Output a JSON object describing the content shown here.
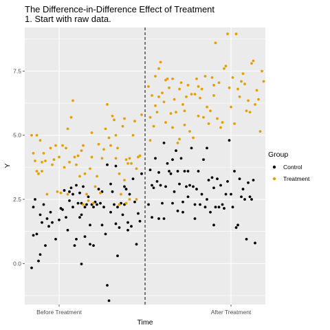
{
  "chart_data": {
    "type": "scatter",
    "title": "The Difference-in-Difference Effect of Treatment",
    "subtitle": "1. Start with raw data.",
    "xlabel": "Time",
    "ylabel": "Y",
    "categories": [
      "Before Treatment",
      "After Treatment"
    ],
    "x_axis_range": [
      -0.2,
      1.2
    ],
    "ylim": [
      -1.6,
      9.2
    ],
    "y_ticks": [
      0.0,
      2.5,
      5.0,
      7.5
    ],
    "y_tick_labels": [
      "0.0",
      "2.5",
      "5.0",
      "7.5"
    ],
    "divider_x": 0.5,
    "divider_style": "dashed",
    "grid": true,
    "legend": {
      "title": "Group",
      "placement": "right"
    },
    "colors": {
      "panel": "#ebebeb",
      "grid": "#ffffff",
      "control": "#000000",
      "treatment": "#e69f00"
    },
    "series": [
      {
        "name": "Control",
        "color": "#000000",
        "points": [
          [
            -0.16,
            -0.17
          ],
          [
            -0.15,
            2.2
          ],
          [
            -0.15,
            1.1
          ],
          [
            -0.14,
            2.5
          ],
          [
            -0.13,
            1.15
          ],
          [
            -0.12,
            0.1
          ],
          [
            -0.11,
            1.9
          ],
          [
            -0.11,
            0.35
          ],
          [
            -0.1,
            1.6
          ],
          [
            -0.09,
            2.3
          ],
          [
            -0.08,
            0.7
          ],
          [
            -0.07,
            1.75
          ],
          [
            -0.06,
            1.45
          ],
          [
            -0.05,
            2.0
          ],
          [
            -0.04,
            1.6
          ],
          [
            -0.02,
            0.95
          ],
          [
            0.0,
            1.7
          ],
          [
            0.01,
            2.15
          ],
          [
            0.02,
            2.1
          ],
          [
            0.03,
            2.85
          ],
          [
            0.04,
            1.8
          ],
          [
            0.05,
            1.3
          ],
          [
            0.06,
            2.8
          ],
          [
            0.06,
            2.45
          ],
          [
            0.07,
            2.95
          ],
          [
            0.08,
            2.7
          ],
          [
            0.08,
            2.2
          ],
          [
            0.09,
            0.7
          ],
          [
            0.1,
            3.05
          ],
          [
            0.1,
            0.95
          ],
          [
            0.11,
            2.35
          ],
          [
            0.12,
            1.8
          ],
          [
            0.12,
            2.75
          ],
          [
            0.13,
            2.35
          ],
          [
            0.13,
            1.9
          ],
          [
            0.13,
            -0.02
          ],
          [
            0.14,
            3.0
          ],
          [
            0.15,
            2.2
          ],
          [
            0.15,
            1.05
          ],
          [
            0.16,
            2.3
          ],
          [
            0.17,
            2.6
          ],
          [
            0.18,
            1.5
          ],
          [
            0.18,
            0.75
          ],
          [
            0.19,
            2.3
          ],
          [
            0.2,
            2.2
          ],
          [
            0.2,
            0.7
          ],
          [
            0.21,
            2.4
          ],
          [
            0.22,
            2.3
          ],
          [
            0.23,
            2.9
          ],
          [
            0.24,
            2.35
          ],
          [
            0.25,
            1.5
          ],
          [
            0.25,
            2.8
          ],
          [
            0.26,
            2.2
          ],
          [
            0.27,
            1.15
          ],
          [
            0.28,
            3.85
          ],
          [
            0.28,
            -0.85
          ],
          [
            0.29,
            -1.45
          ],
          [
            0.3,
            3.1
          ],
          [
            0.3,
            2.0
          ],
          [
            0.31,
            2.8
          ],
          [
            0.32,
            2.3
          ],
          [
            0.33,
            1.55
          ],
          [
            0.33,
            3.8
          ],
          [
            0.34,
            2.2
          ],
          [
            0.34,
            0.3
          ],
          [
            0.35,
            1.4
          ],
          [
            0.36,
            2.35
          ],
          [
            0.37,
            1.9
          ],
          [
            0.38,
            3.0
          ],
          [
            0.38,
            2.3
          ],
          [
            0.39,
            2.9
          ],
          [
            0.4,
            1.6
          ],
          [
            0.4,
            1.3
          ],
          [
            0.41,
            2.7
          ],
          [
            0.42,
            1.45
          ],
          [
            0.43,
            3.3
          ],
          [
            0.44,
            2.4
          ],
          [
            0.45,
            0.75
          ],
          [
            0.46,
            1.95
          ],
          [
            0.47,
            1.65
          ],
          [
            0.48,
            3.5
          ],
          [
            0.52,
            2.3
          ],
          [
            0.53,
            3.65
          ],
          [
            0.54,
            3.05
          ],
          [
            0.54,
            1.8
          ],
          [
            0.55,
            2.95
          ],
          [
            0.56,
            4.1
          ],
          [
            0.57,
            3.2
          ],
          [
            0.58,
            3.55
          ],
          [
            0.58,
            1.75
          ],
          [
            0.59,
            3.05
          ],
          [
            0.6,
            2.35
          ],
          [
            0.61,
            4.7
          ],
          [
            0.61,
            1.75
          ],
          [
            0.62,
            3.0
          ],
          [
            0.63,
            3.9
          ],
          [
            0.64,
            3.6
          ],
          [
            0.65,
            3.5
          ],
          [
            0.66,
            4.05
          ],
          [
            0.66,
            2.35
          ],
          [
            0.67,
            2.8
          ],
          [
            0.68,
            4.4
          ],
          [
            0.69,
            3.6
          ],
          [
            0.69,
            2.05
          ],
          [
            0.7,
            3.1
          ],
          [
            0.71,
            4.1
          ],
          [
            0.72,
            2.4
          ],
          [
            0.72,
            2.0
          ],
          [
            0.73,
            3.6
          ],
          [
            0.74,
            3.0
          ],
          [
            0.75,
            3.6
          ],
          [
            0.75,
            2.6
          ],
          [
            0.76,
            3.05
          ],
          [
            0.77,
            4.5
          ],
          [
            0.78,
            3.0
          ],
          [
            0.79,
            2.3
          ],
          [
            0.79,
            1.75
          ],
          [
            0.8,
            2.9
          ],
          [
            0.81,
            3.6
          ],
          [
            0.82,
            2.3
          ],
          [
            0.83,
            2.7
          ],
          [
            0.84,
            4.05
          ],
          [
            0.85,
            2.2
          ],
          [
            0.86,
            2.5
          ],
          [
            0.86,
            4.5
          ],
          [
            0.87,
            3.25
          ],
          [
            0.88,
            2.0
          ],
          [
            0.89,
            3.35
          ],
          [
            0.9,
            2.95
          ],
          [
            0.9,
            1.5
          ],
          [
            0.91,
            2.2
          ],
          [
            0.92,
            3.3
          ],
          [
            0.93,
            2.2
          ],
          [
            0.94,
            3.05
          ],
          [
            0.95,
            2.3
          ],
          [
            0.96,
            2.15
          ],
          [
            0.97,
            2.7
          ],
          [
            0.98,
            3.2
          ],
          [
            0.99,
            4.8
          ],
          [
            1.0,
            2.7
          ],
          [
            1.01,
            2.2
          ],
          [
            1.02,
            3.6
          ],
          [
            1.03,
            1.4
          ],
          [
            1.04,
            1.5
          ],
          [
            1.05,
            3.3
          ],
          [
            1.06,
            2.6
          ],
          [
            1.07,
            2.9
          ],
          [
            1.08,
            2.5
          ],
          [
            1.09,
            0.95
          ],
          [
            1.1,
            3.15
          ],
          [
            1.11,
            2.6
          ],
          [
            1.12,
            2.5
          ],
          [
            1.13,
            3.25
          ],
          [
            1.14,
            0.8
          ]
        ]
      },
      {
        "name": "Treatment",
        "color": "#e69f00",
        "points": [
          [
            -0.16,
            5.0
          ],
          [
            -0.15,
            4.3
          ],
          [
            -0.14,
            4.0
          ],
          [
            -0.13,
            3.6
          ],
          [
            -0.13,
            5.0
          ],
          [
            -0.12,
            3.5
          ],
          [
            -0.11,
            4.8
          ],
          [
            -0.1,
            3.95
          ],
          [
            -0.1,
            3.6
          ],
          [
            -0.09,
            4.3
          ],
          [
            -0.08,
            4.0
          ],
          [
            -0.07,
            2.7
          ],
          [
            -0.05,
            4.5
          ],
          [
            -0.04,
            3.85
          ],
          [
            -0.03,
            4.05
          ],
          [
            -0.02,
            4.6
          ],
          [
            -0.01,
            2.8
          ],
          [
            0.0,
            4.15
          ],
          [
            0.01,
            2.75
          ],
          [
            0.02,
            4.6
          ],
          [
            0.03,
            3.75
          ],
          [
            0.04,
            4.5
          ],
          [
            0.05,
            5.25
          ],
          [
            0.05,
            2.7
          ],
          [
            0.06,
            3.95
          ],
          [
            0.07,
            5.7
          ],
          [
            0.08,
            6.35
          ],
          [
            0.09,
            4.15
          ],
          [
            0.1,
            3.85
          ],
          [
            0.11,
            4.2
          ],
          [
            0.12,
            3.4
          ],
          [
            0.13,
            4.4
          ],
          [
            0.14,
            2.3
          ],
          [
            0.14,
            4.6
          ],
          [
            0.15,
            3.5
          ],
          [
            0.16,
            2.7
          ],
          [
            0.17,
            2.45
          ],
          [
            0.18,
            3.7
          ],
          [
            0.19,
            4.15
          ],
          [
            0.19,
            5.1
          ],
          [
            0.2,
            2.35
          ],
          [
            0.21,
            3.0
          ],
          [
            0.22,
            3.4
          ],
          [
            0.23,
            4.65
          ],
          [
            0.24,
            2.75
          ],
          [
            0.25,
            4.1
          ],
          [
            0.26,
            4.45
          ],
          [
            0.27,
            5.25
          ],
          [
            0.28,
            6.2
          ],
          [
            0.29,
            4.9
          ],
          [
            0.3,
            4.6
          ],
          [
            0.31,
            5.75
          ],
          [
            0.32,
            5.6
          ],
          [
            0.33,
            5.0
          ],
          [
            0.33,
            4.1
          ],
          [
            0.34,
            4.5
          ],
          [
            0.35,
            3.5
          ],
          [
            0.35,
            2.3
          ],
          [
            0.36,
            2.7
          ],
          [
            0.37,
            5.35
          ],
          [
            0.38,
            5.65
          ],
          [
            0.38,
            3.25
          ],
          [
            0.39,
            4.05
          ],
          [
            0.39,
            2.35
          ],
          [
            0.4,
            3.9
          ],
          [
            0.41,
            4.1
          ],
          [
            0.41,
            2.5
          ],
          [
            0.42,
            3.9
          ],
          [
            0.43,
            5.0
          ],
          [
            0.44,
            5.55
          ],
          [
            0.45,
            2.5
          ],
          [
            0.45,
            3.7
          ],
          [
            0.46,
            4.15
          ],
          [
            0.47,
            4.2
          ],
          [
            0.48,
            5.8
          ],
          [
            0.52,
            6.9
          ],
          [
            0.53,
            4.8
          ],
          [
            0.53,
            5.7
          ],
          [
            0.54,
            6.55
          ],
          [
            0.55,
            5.35
          ],
          [
            0.56,
            6.15
          ],
          [
            0.56,
            7.3
          ],
          [
            0.57,
            5.9
          ],
          [
            0.58,
            7.6
          ],
          [
            0.58,
            6.5
          ],
          [
            0.59,
            7.85
          ],
          [
            0.6,
            6.65
          ],
          [
            0.61,
            6.3
          ],
          [
            0.62,
            5.5
          ],
          [
            0.62,
            7.15
          ],
          [
            0.63,
            7.2
          ],
          [
            0.64,
            6.85
          ],
          [
            0.65,
            5.85
          ],
          [
            0.66,
            7.2
          ],
          [
            0.66,
            5.3
          ],
          [
            0.67,
            6.4
          ],
          [
            0.68,
            5.9
          ],
          [
            0.69,
            4.7
          ],
          [
            0.7,
            4.85
          ],
          [
            0.7,
            6.8
          ],
          [
            0.71,
            7.05
          ],
          [
            0.72,
            6.2
          ],
          [
            0.73,
            5.95
          ],
          [
            0.73,
            5.4
          ],
          [
            0.74,
            6.5
          ],
          [
            0.75,
            6.95
          ],
          [
            0.76,
            5.15
          ],
          [
            0.77,
            6.6
          ],
          [
            0.78,
            4.9
          ],
          [
            0.79,
            6.6
          ],
          [
            0.8,
            7.2
          ],
          [
            0.81,
            6.9
          ],
          [
            0.81,
            5.75
          ],
          [
            0.82,
            6.45
          ],
          [
            0.83,
            6.8
          ],
          [
            0.84,
            5.7
          ],
          [
            0.85,
            7.3
          ],
          [
            0.86,
            6.1
          ],
          [
            0.87,
            5.45
          ],
          [
            0.88,
            5.95
          ],
          [
            0.89,
            7.25
          ],
          [
            0.9,
            6.95
          ],
          [
            0.9,
            6.55
          ],
          [
            0.91,
            8.6
          ],
          [
            0.92,
            5.65
          ],
          [
            0.93,
            7.05
          ],
          [
            0.94,
            5.3
          ],
          [
            0.95,
            5.5
          ],
          [
            0.96,
            7.6
          ],
          [
            0.97,
            7.7
          ],
          [
            0.98,
            8.95
          ],
          [
            0.99,
            6.85
          ],
          [
            1.0,
            6.1
          ],
          [
            1.01,
            7.25
          ],
          [
            1.02,
            5.45
          ],
          [
            1.03,
            8.95
          ],
          [
            1.04,
            6.8
          ],
          [
            1.05,
            6.5
          ],
          [
            1.06,
            7.1
          ],
          [
            1.07,
            7.4
          ],
          [
            1.08,
            7.0
          ],
          [
            1.09,
            5.95
          ],
          [
            1.1,
            6.35
          ],
          [
            1.11,
            5.9
          ],
          [
            1.12,
            7.8
          ],
          [
            1.13,
            7.9
          ],
          [
            1.14,
            6.2
          ],
          [
            1.15,
            6.75
          ],
          [
            1.16,
            6.4
          ],
          [
            1.17,
            5.15
          ],
          [
            1.18,
            7.5
          ],
          [
            1.19,
            7.1
          ]
        ]
      }
    ]
  }
}
